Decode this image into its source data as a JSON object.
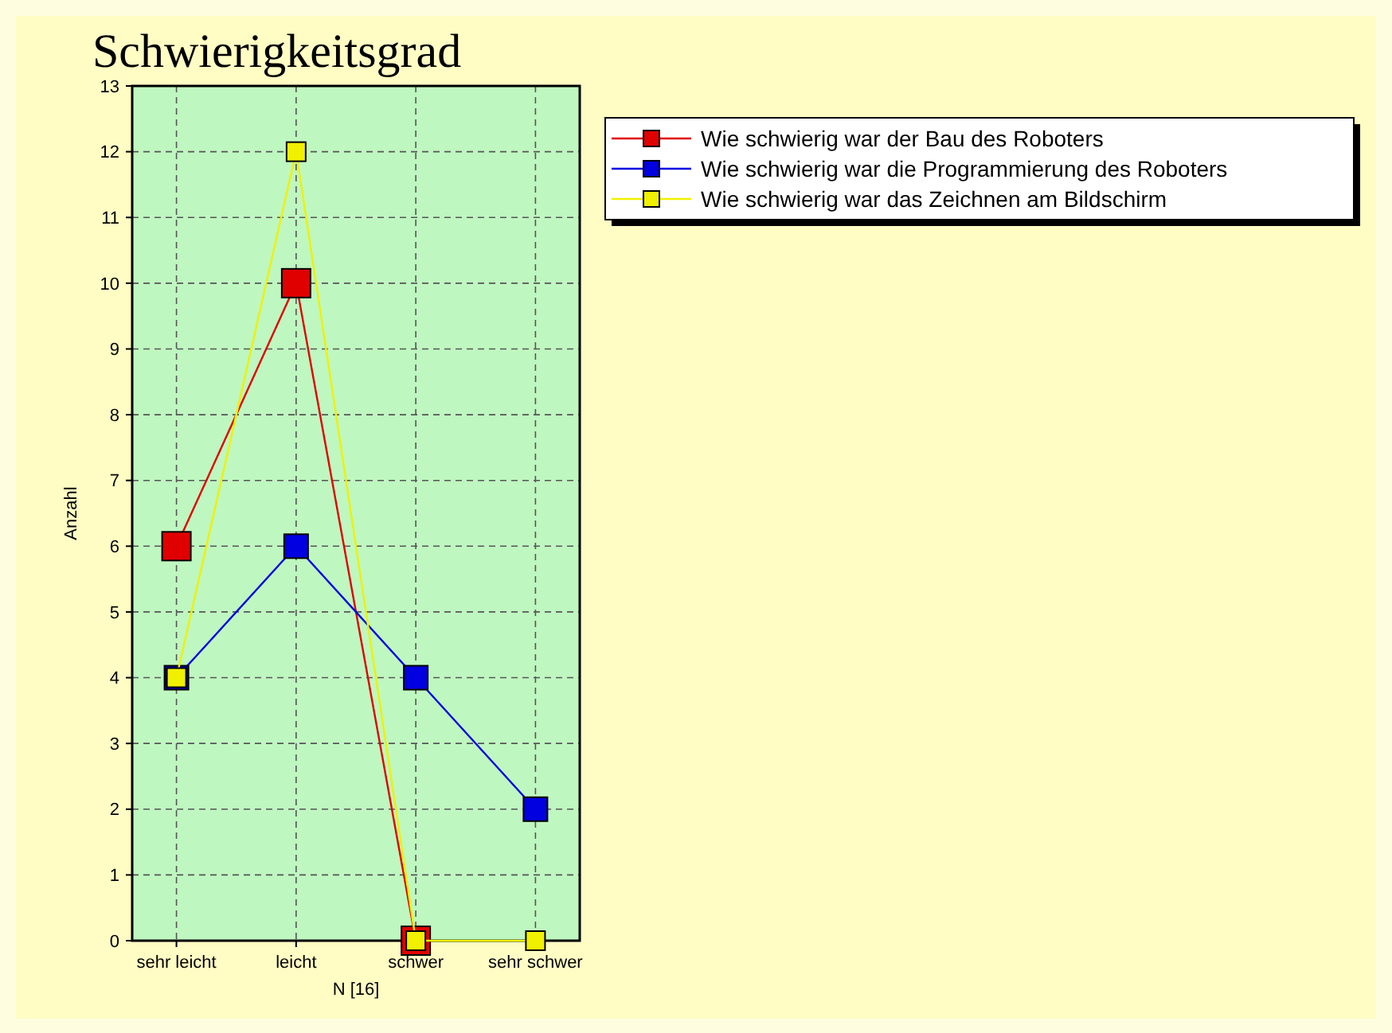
{
  "chart_data": {
    "type": "line",
    "title": "Schwierigkeitsgrad",
    "xlabel": "N [16]",
    "ylabel": "Anzahl",
    "categories": [
      "sehr leicht",
      "leicht",
      "schwer",
      "sehr schwer"
    ],
    "series": [
      {
        "name": "Wie schwierig war der Bau des Roboters",
        "color": "#e00000",
        "values": [
          6,
          10,
          0,
          null
        ]
      },
      {
        "name": "Wie schwierig war die Programmierung des Roboters",
        "color": "#0000e0",
        "values": [
          4,
          6,
          4,
          2
        ]
      },
      {
        "name": "Wie schwierig war das Zeichnen am Bildschirm",
        "color": "#f0f000",
        "values": [
          4,
          12,
          0,
          0
        ]
      }
    ],
    "ylim": [
      0,
      13
    ],
    "yticks": [
      0,
      1,
      2,
      3,
      4,
      5,
      6,
      7,
      8,
      9,
      10,
      11,
      12,
      13
    ],
    "grid": true,
    "legend": "right",
    "marker": "square",
    "line_style": "solid"
  }
}
